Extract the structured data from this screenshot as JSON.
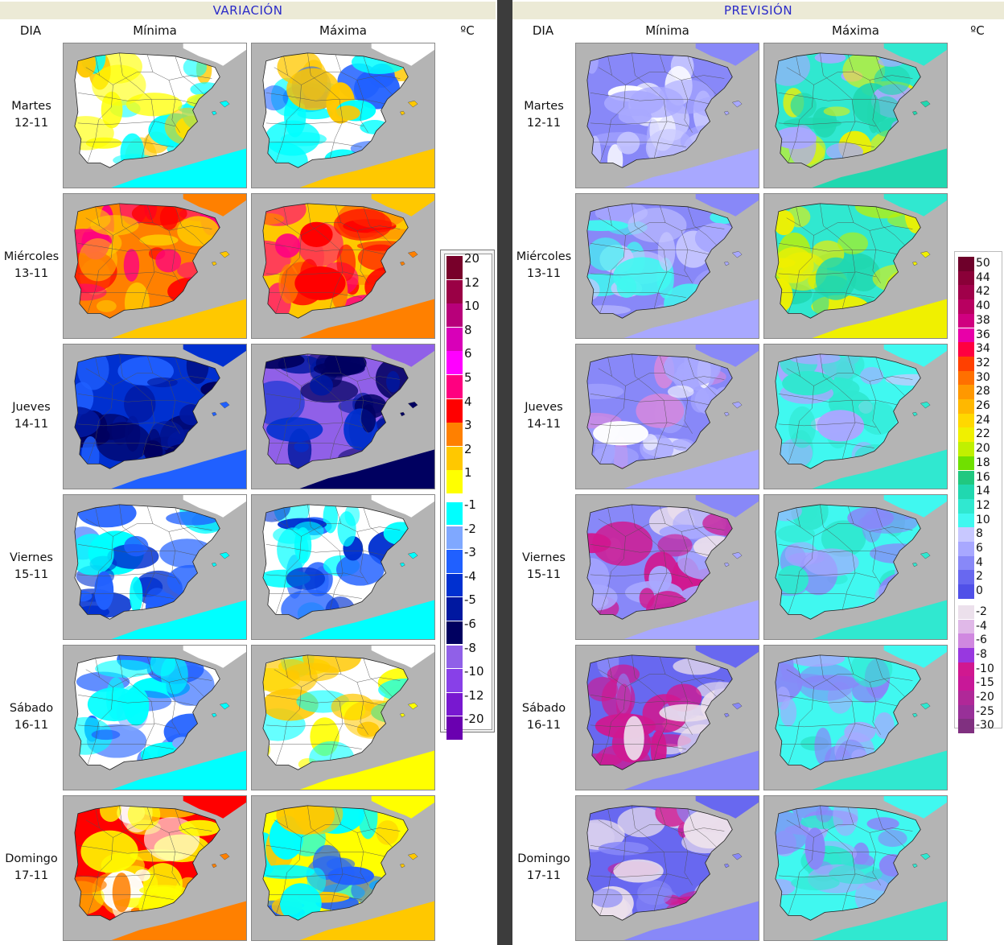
{
  "left_header": "VARIACIÓN",
  "right_header": "PREVISIÓN",
  "col_dia": "DIA",
  "col_minima": "Mínima",
  "col_maxima": "Máxima",
  "col_unit": "ºC",
  "days": [
    {
      "name": "Martes",
      "date": "12-11"
    },
    {
      "name": "Miércoles",
      "date": "13-11"
    },
    {
      "name": "Jueves",
      "date": "14-11"
    },
    {
      "name": "Viernes",
      "date": "15-11"
    },
    {
      "name": "Sábado",
      "date": "16-11"
    },
    {
      "name": "Domingo",
      "date": "17-11"
    }
  ],
  "variacion_legend": [
    {
      "label": "20",
      "color": "#78002a"
    },
    {
      "label": "12",
      "color": "#9a0045"
    },
    {
      "label": "10",
      "color": "#b8007a"
    },
    {
      "label": "8",
      "color": "#d800b8"
    },
    {
      "label": "6",
      "color": "#ff00ff"
    },
    {
      "label": "5",
      "color": "#ff0080"
    },
    {
      "label": "4",
      "color": "#ff0000"
    },
    {
      "label": "3",
      "color": "#ff8000"
    },
    {
      "label": "2",
      "color": "#ffc800"
    },
    {
      "label": "1",
      "color": "#ffff00"
    },
    {
      "label": "-1",
      "color": "#00ffff"
    },
    {
      "label": "-2",
      "color": "#7fa8ff"
    },
    {
      "label": "-3",
      "color": "#2060ff"
    },
    {
      "label": "-4",
      "color": "#0030d0"
    },
    {
      "label": "-5",
      "color": "#0018a0"
    },
    {
      "label": "-6",
      "color": "#000060"
    },
    {
      "label": "-8",
      "color": "#9060e8"
    },
    {
      "label": "-10",
      "color": "#8840e8"
    },
    {
      "label": "-12",
      "color": "#7818d0"
    },
    {
      "label": "-20",
      "color": "#6a00b0"
    }
  ],
  "prevision_legend": [
    {
      "label": "50",
      "color": "#6e002a"
    },
    {
      "label": "44",
      "color": "#8a0038"
    },
    {
      "label": "42",
      "color": "#a0004a"
    },
    {
      "label": "40",
      "color": "#b80060"
    },
    {
      "label": "38",
      "color": "#d00080"
    },
    {
      "label": "36",
      "color": "#e800a8"
    },
    {
      "label": "34",
      "color": "#ff0040"
    },
    {
      "label": "32",
      "color": "#ff4000"
    },
    {
      "label": "30",
      "color": "#ff7000"
    },
    {
      "label": "28",
      "color": "#ff9800"
    },
    {
      "label": "26",
      "color": "#ffb800"
    },
    {
      "label": "24",
      "color": "#ffd800"
    },
    {
      "label": "22",
      "color": "#f0f000"
    },
    {
      "label": "20",
      "color": "#c0f000"
    },
    {
      "label": "18",
      "color": "#70e000"
    },
    {
      "label": "16",
      "color": "#20c880"
    },
    {
      "label": "14",
      "color": "#20d8b0"
    },
    {
      "label": "12",
      "color": "#30e8d0"
    },
    {
      "label": "10",
      "color": "#40f8f0"
    },
    {
      "label": "8",
      "color": "#c8c8ff"
    },
    {
      "label": "6",
      "color": "#a8a8ff"
    },
    {
      "label": "4",
      "color": "#8888f8"
    },
    {
      "label": "2",
      "color": "#6868f0"
    },
    {
      "label": "0",
      "color": "#5050e8"
    },
    {
      "label": "-2",
      "color": "#ece0ec"
    },
    {
      "label": "-4",
      "color": "#e0b8e8"
    },
    {
      "label": "-6",
      "color": "#d088e0"
    },
    {
      "label": "-8",
      "color": "#9838e0"
    },
    {
      "label": "-10",
      "color": "#d01890"
    },
    {
      "label": "-15",
      "color": "#c81898"
    },
    {
      "label": "-20",
      "color": "#b02898"
    },
    {
      "label": "-25",
      "color": "#983098"
    },
    {
      "label": "-30",
      "color": "#803080"
    }
  ],
  "map_palettes": {
    "variacion_minima": [
      [
        "#ffffff",
        "#00ffff",
        "#ffff00",
        "#ffc800"
      ],
      [
        "#ff8000",
        "#ffc800",
        "#ff0080",
        "#ff0000"
      ],
      [
        "#0030d0",
        "#2060ff",
        "#000060",
        "#0018a0"
      ],
      [
        "#ffffff",
        "#00ffff",
        "#2060ff",
        "#0030d0"
      ],
      [
        "#ffffff",
        "#00ffff",
        "#2060ff",
        "#7fa8ff"
      ],
      [
        "#ff0000",
        "#ff8000",
        "#ffffff",
        "#ffff00"
      ]
    ],
    "variacion_maxima": [
      [
        "#ffffff",
        "#ffc800",
        "#00ffff",
        "#2060ff"
      ],
      [
        "#ffc800",
        "#ff8000",
        "#ff0000",
        "#ff0080"
      ],
      [
        "#9060e8",
        "#000060",
        "#0018a0",
        "#0030d0"
      ],
      [
        "#ffffff",
        "#00ffff",
        "#2060ff",
        "#0030d0"
      ],
      [
        "#ffffff",
        "#ffff00",
        "#ffc800",
        "#00ffff"
      ],
      [
        "#ffff00",
        "#ffc800",
        "#2060ff",
        "#00ffff"
      ]
    ],
    "prevision_minima": [
      [
        "#8888f8",
        "#a8a8ff",
        "#c8c8ff",
        "#ffffff"
      ],
      [
        "#8888f8",
        "#a8a8ff",
        "#40f8f0",
        "#c8c8ff"
      ],
      [
        "#8888f8",
        "#a8a8ff",
        "#ffffff",
        "#d088e0"
      ],
      [
        "#8888f8",
        "#a8a8ff",
        "#ece0ec",
        "#d01890"
      ],
      [
        "#6868f0",
        "#8888f8",
        "#ece0ec",
        "#d01890"
      ],
      [
        "#6868f0",
        "#8888f8",
        "#ece0ec",
        "#d01890"
      ]
    ],
    "prevision_maxima": [
      [
        "#30e8d0",
        "#20d8b0",
        "#a8a8ff",
        "#f0f000"
      ],
      [
        "#30e8d0",
        "#f0f000",
        "#20d8b0",
        "#c0f000"
      ],
      [
        "#40f8f0",
        "#30e8d0",
        "#a8a8ff",
        "#c8c8ff"
      ],
      [
        "#40f8f0",
        "#30e8d0",
        "#a8a8ff",
        "#8888f8"
      ],
      [
        "#40f8f0",
        "#30e8d0",
        "#a8a8ff",
        "#8888f8"
      ],
      [
        "#40f8f0",
        "#30e8d0",
        "#a8a8ff",
        "#8888f8"
      ]
    ]
  }
}
